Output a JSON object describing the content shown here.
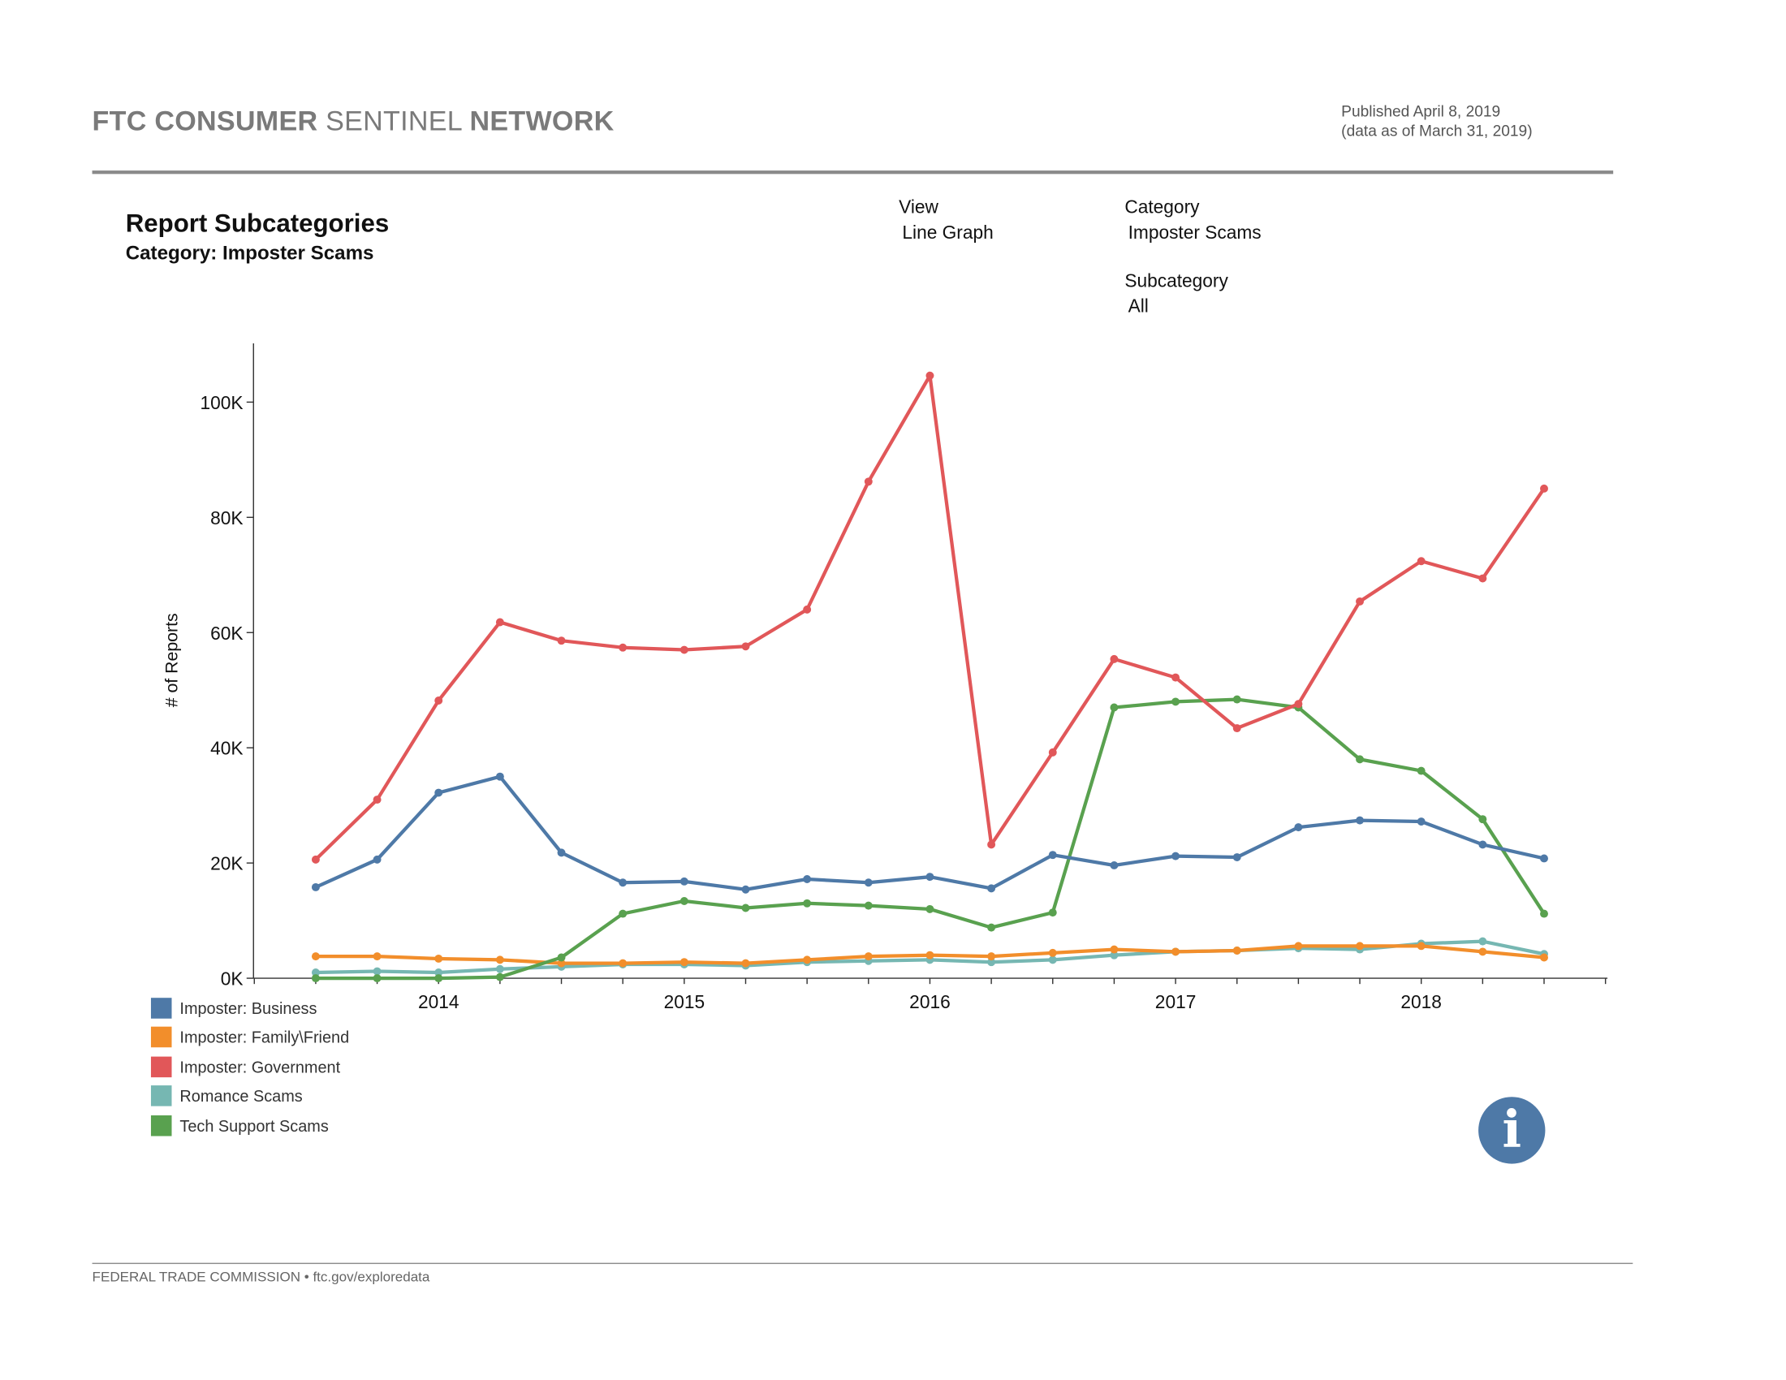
{
  "header": {
    "brand_bold1": "FTC CONSUMER",
    "brand_light": "SENTINEL",
    "brand_bold2": "NETWORK",
    "published": "Published April 8, 2019",
    "data_as_of": "(data as of March 31, 2019)"
  },
  "report": {
    "title": "Report Subcategories",
    "subtitle": "Category: Imposter Scams"
  },
  "controls": {
    "view_label": "View",
    "view_value": "Line Graph",
    "category_label": "Category",
    "category_value": "Imposter Scams",
    "subcategory_label": "Subcategory",
    "subcategory_value": "All"
  },
  "footer": {
    "text": "FEDERAL TRADE COMMISSION • ftc.gov/exploredata"
  },
  "info_icon": "info-icon",
  "chart_data": {
    "type": "line",
    "title": "",
    "xlabel": "",
    "ylabel": "# of Reports",
    "ylim": [
      0,
      110000
    ],
    "y_ticks": [
      0,
      20000,
      40000,
      60000,
      80000,
      100000
    ],
    "y_tick_labels": [
      "0K",
      "20K",
      "40K",
      "60K",
      "80K",
      "100K"
    ],
    "x_tick_labels": [
      "2014",
      "2015",
      "2016",
      "2017",
      "2018"
    ],
    "grid": false,
    "legend_position": "bottom-left",
    "x": [
      "2013 Q3",
      "2013 Q4",
      "2014 Q1",
      "2014 Q2",
      "2014 Q3",
      "2014 Q4",
      "2015 Q1",
      "2015 Q2",
      "2015 Q3",
      "2015 Q4",
      "2016 Q1",
      "2016 Q2",
      "2016 Q3",
      "2016 Q4",
      "2017 Q1",
      "2017 Q2",
      "2017 Q3",
      "2017 Q4",
      "2018 Q1",
      "2018 Q2",
      "2018 Q3"
    ],
    "series": [
      {
        "name": "Imposter: Business",
        "color": "#4e79a7",
        "values": [
          15800,
          20600,
          32200,
          35000,
          21800,
          16600,
          16800,
          15400,
          17200,
          16600,
          17600,
          15600,
          21400,
          19600,
          21200,
          21000,
          26200,
          27400,
          27200,
          23200,
          20800
        ]
      },
      {
        "name": "Imposter: Family\\Friend",
        "color": "#f28e2b",
        "values": [
          3800,
          3800,
          3400,
          3200,
          2600,
          2600,
          2800,
          2600,
          3200,
          3800,
          4000,
          3800,
          4400,
          5000,
          4600,
          4800,
          5600,
          5600,
          5600,
          4600,
          3600
        ]
      },
      {
        "name": "Imposter: Government",
        "color": "#e15759",
        "values": [
          20600,
          31000,
          48200,
          61800,
          58600,
          57400,
          57000,
          57600,
          64000,
          86200,
          104600,
          23200,
          39200,
          55400,
          52200,
          43400,
          47600,
          65400,
          72400,
          69400,
          85000
        ]
      },
      {
        "name": "Romance Scams",
        "color": "#76b7b2",
        "values": [
          1000,
          1200,
          1000,
          1600,
          2000,
          2400,
          2400,
          2200,
          2800,
          3000,
          3200,
          2800,
          3200,
          4000,
          4600,
          4800,
          5200,
          5000,
          6000,
          6400,
          4200
        ]
      },
      {
        "name": "Tech Support Scams",
        "color": "#59a14f",
        "values": [
          0,
          0,
          0,
          200,
          3600,
          11200,
          13400,
          12200,
          13000,
          12600,
          12000,
          8800,
          11400,
          47000,
          48000,
          48400,
          47000,
          38000,
          36000,
          27600,
          11200
        ]
      }
    ]
  }
}
